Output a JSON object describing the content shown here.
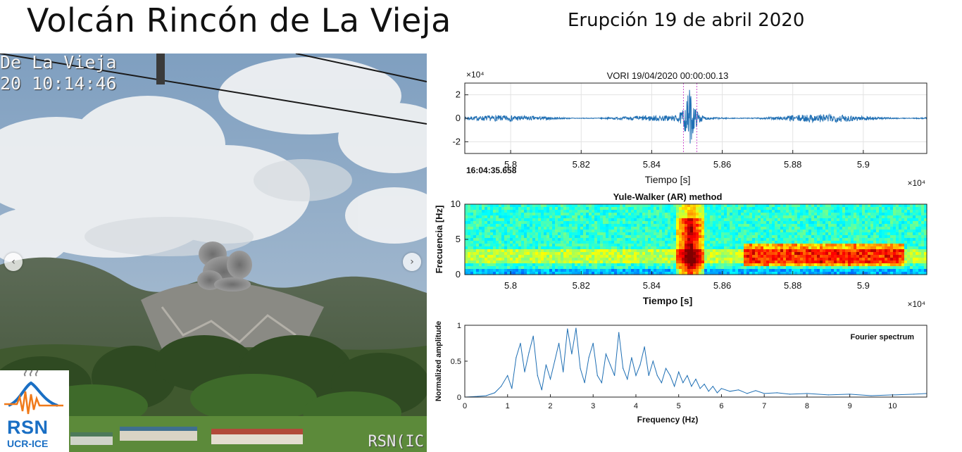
{
  "slide": {
    "title": "Volcán Rincón de La Vieja",
    "subtitle": "Erupción 19 de abril 2020"
  },
  "photo": {
    "camera_stamp_line1": "De La Vieja",
    "camera_stamp_line2": "20 10:14:46",
    "watermark": "RSN(IC",
    "prev_arrow": "‹",
    "next_arrow": "›"
  },
  "logo": {
    "name": "RSN",
    "org": "UCR-ICE",
    "icon": "seismograph-volcano-logo"
  },
  "chart_data": [
    {
      "type": "line",
      "id": "seismogram",
      "title": "VORI 19/04/2020  00:00:00.13",
      "xlabel": "Tiempo [s]",
      "x_exponent": "×10⁴",
      "y_exponent": "×10⁴",
      "start_time_label": "16:04:35.658",
      "xlim": [
        5.787,
        5.918
      ],
      "ylim": [
        -3,
        3
      ],
      "x_ticks": [
        5.8,
        5.82,
        5.84,
        5.86,
        5.88,
        5.9
      ],
      "x_tick_labels": [
        "5.8",
        "5.82",
        "5.84",
        "5.86",
        "5.88",
        "5.9"
      ],
      "y_ticks": [
        2,
        0,
        -2
      ],
      "y_tick_labels": [
        "2",
        "0",
        "-2"
      ],
      "grid": true,
      "event_markers_x": [
        5.849,
        5.8528
      ],
      "event_peak_x": 5.8507,
      "event_peak_amplitude": 2.7,
      "noise_amplitude": 0.25,
      "color": "#1f6fb4"
    },
    {
      "type": "heatmap",
      "id": "spectrogram",
      "title": "Yule-Walker (AR) method",
      "xlabel": "Tiempo [s]",
      "ylabel": "Frecuencia [Hz]",
      "x_exponent": "×10⁴",
      "xlim": [
        5.787,
        5.918
      ],
      "ylim": [
        0,
        10
      ],
      "x_ticks": [
        5.8,
        5.82,
        5.84,
        5.86,
        5.88,
        5.9
      ],
      "x_tick_labels": [
        "5.8",
        "5.82",
        "5.84",
        "5.86",
        "5.88",
        "5.9"
      ],
      "y_ticks": [
        0,
        5,
        10
      ],
      "y_tick_labels": [
        "0",
        "5",
        "10"
      ],
      "hot_band_hz": [
        1.5,
        3.5
      ],
      "burst_x": 5.851,
      "tremor_x_range": [
        5.866,
        5.912
      ]
    },
    {
      "type": "line",
      "id": "fourier-spectrum",
      "legend": "Fourier spectrum",
      "legend_position": "top-right",
      "xlabel": "Frequency (Hz)",
      "ylabel": "Normalized amplitude",
      "xlim": [
        0,
        10.8
      ],
      "ylim": [
        0,
        1
      ],
      "x_ticks": [
        0,
        1,
        2,
        3,
        4,
        5,
        6,
        7,
        8,
        9,
        10
      ],
      "x_tick_labels": [
        "0",
        "1",
        "2",
        "3",
        "4",
        "5",
        "6",
        "7",
        "8",
        "9",
        "10"
      ],
      "y_ticks": [
        0,
        0.5,
        1
      ],
      "y_tick_labels": [
        "0",
        "0.5",
        "1"
      ],
      "x": [
        0,
        0.3,
        0.5,
        0.7,
        0.85,
        1.0,
        1.1,
        1.2,
        1.3,
        1.4,
        1.5,
        1.6,
        1.7,
        1.8,
        1.9,
        2.0,
        2.1,
        2.2,
        2.3,
        2.4,
        2.5,
        2.6,
        2.7,
        2.8,
        2.9,
        3.0,
        3.1,
        3.2,
        3.3,
        3.4,
        3.5,
        3.6,
        3.7,
        3.8,
        3.9,
        4.0,
        4.1,
        4.2,
        4.3,
        4.4,
        4.5,
        4.6,
        4.7,
        4.8,
        4.9,
        5.0,
        5.1,
        5.2,
        5.3,
        5.4,
        5.5,
        5.6,
        5.7,
        5.8,
        5.9,
        6.0,
        6.2,
        6.4,
        6.6,
        6.8,
        7.0,
        7.3,
        7.6,
        8.0,
        8.5,
        9.0,
        9.5,
        10.0,
        10.5,
        10.8
      ],
      "y": [
        0,
        0.01,
        0.02,
        0.06,
        0.15,
        0.3,
        0.12,
        0.55,
        0.75,
        0.35,
        0.62,
        0.85,
        0.3,
        0.1,
        0.45,
        0.25,
        0.5,
        0.75,
        0.35,
        0.95,
        0.6,
        0.96,
        0.4,
        0.2,
        0.55,
        0.75,
        0.3,
        0.2,
        0.6,
        0.45,
        0.3,
        0.9,
        0.4,
        0.25,
        0.55,
        0.3,
        0.45,
        0.7,
        0.3,
        0.5,
        0.3,
        0.2,
        0.4,
        0.3,
        0.15,
        0.35,
        0.2,
        0.3,
        0.15,
        0.25,
        0.12,
        0.18,
        0.08,
        0.15,
        0.06,
        0.12,
        0.08,
        0.1,
        0.05,
        0.09,
        0.05,
        0.06,
        0.04,
        0.05,
        0.03,
        0.04,
        0.02,
        0.03,
        0.04,
        0.05
      ],
      "color": "#1f6fb4"
    }
  ]
}
